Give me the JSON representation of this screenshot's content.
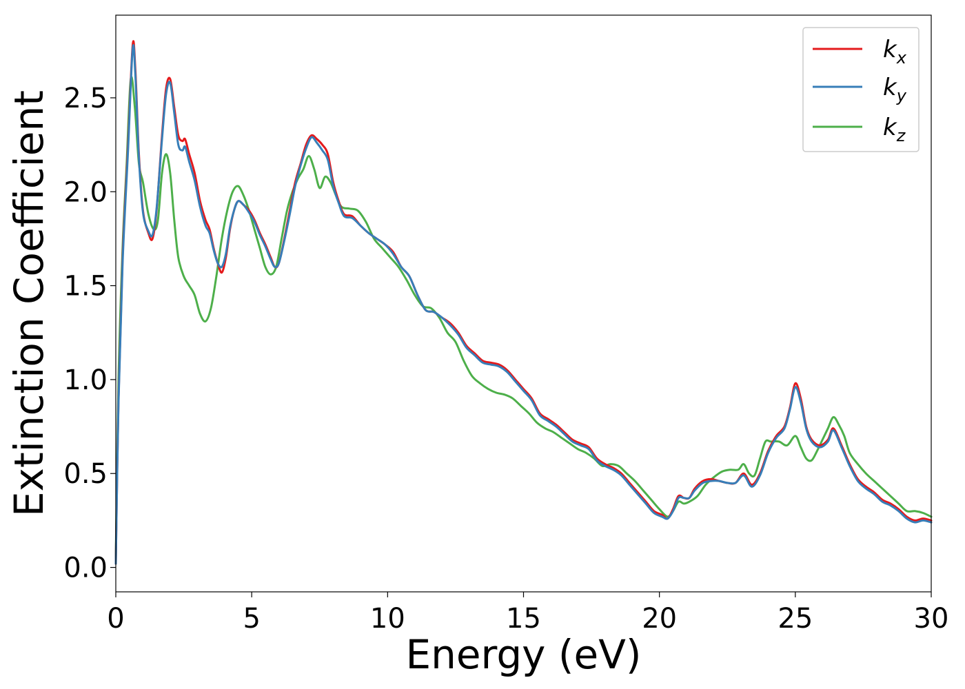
{
  "chart_data": {
    "type": "line",
    "title": "",
    "xlabel": "Energy (eV)",
    "ylabel": "Extinction Coefficient",
    "xlim": [
      0,
      30
    ],
    "ylim": [
      -0.13,
      2.94
    ],
    "xticks": [
      0,
      5,
      10,
      15,
      20,
      25,
      30
    ],
    "xtick_labels": [
      "0",
      "5",
      "10",
      "15",
      "20",
      "25",
      "30"
    ],
    "yticks": [
      0.0,
      0.5,
      1.0,
      1.5,
      2.0,
      2.5
    ],
    "ytick_labels": [
      "0.0",
      "0.5",
      "1.0",
      "1.5",
      "2.0",
      "2.5"
    ],
    "grid": false,
    "legend": {
      "placement": "top-right"
    },
    "series": [
      {
        "name": "k",
        "subscript": "x",
        "color": "#e41a1c",
        "x": [
          0,
          0.1,
          0.25,
          0.45,
          0.62,
          0.72,
          0.85,
          1.0,
          1.2,
          1.35,
          1.5,
          1.7,
          1.85,
          2.0,
          2.15,
          2.3,
          2.45,
          2.55,
          2.7,
          2.9,
          3.1,
          3.3,
          3.45,
          3.6,
          3.75,
          3.9,
          4.05,
          4.2,
          4.35,
          4.5,
          4.7,
          4.9,
          5.1,
          5.3,
          5.5,
          5.7,
          5.85,
          6.0,
          6.2,
          6.4,
          6.6,
          6.8,
          7.0,
          7.2,
          7.4,
          7.6,
          7.8,
          8.0,
          8.2,
          8.4,
          8.7,
          9.0,
          9.3,
          9.6,
          9.9,
          10.2,
          10.5,
          10.8,
          11.1,
          11.4,
          11.7,
          12.0,
          12.3,
          12.6,
          12.9,
          13.2,
          13.5,
          13.8,
          14.1,
          14.4,
          14.7,
          15.0,
          15.3,
          15.6,
          15.9,
          16.2,
          16.5,
          16.8,
          17.1,
          17.4,
          17.7,
          18.0,
          18.3,
          18.6,
          18.9,
          19.2,
          19.5,
          19.8,
          20.1,
          20.3,
          20.5,
          20.7,
          20.9,
          21.1,
          21.3,
          21.6,
          21.9,
          22.2,
          22.5,
          22.8,
          23.1,
          23.4,
          23.7,
          24.0,
          24.3,
          24.6,
          24.8,
          25.0,
          25.2,
          25.4,
          25.6,
          25.9,
          26.2,
          26.4,
          26.7,
          27.0,
          27.3,
          27.6,
          27.9,
          28.2,
          28.5,
          28.8,
          29.1,
          29.4,
          29.7,
          30.0
        ],
        "y": [
          0.02,
          0.9,
          1.65,
          2.25,
          2.78,
          2.65,
          2.2,
          1.9,
          1.78,
          1.75,
          1.9,
          2.3,
          2.55,
          2.6,
          2.45,
          2.3,
          2.27,
          2.28,
          2.2,
          2.1,
          1.95,
          1.85,
          1.8,
          1.7,
          1.62,
          1.57,
          1.65,
          1.8,
          1.9,
          1.95,
          1.93,
          1.9,
          1.85,
          1.78,
          1.72,
          1.65,
          1.6,
          1.62,
          1.75,
          1.9,
          2.05,
          2.15,
          2.25,
          2.3,
          2.28,
          2.25,
          2.2,
          2.05,
          1.95,
          1.88,
          1.87,
          1.82,
          1.78,
          1.75,
          1.72,
          1.68,
          1.6,
          1.55,
          1.45,
          1.37,
          1.36,
          1.33,
          1.3,
          1.25,
          1.18,
          1.14,
          1.1,
          1.09,
          1.08,
          1.05,
          1.0,
          0.95,
          0.9,
          0.82,
          0.79,
          0.76,
          0.72,
          0.68,
          0.66,
          0.64,
          0.58,
          0.55,
          0.53,
          0.5,
          0.45,
          0.4,
          0.35,
          0.3,
          0.28,
          0.26,
          0.31,
          0.38,
          0.37,
          0.37,
          0.42,
          0.46,
          0.47,
          0.46,
          0.45,
          0.45,
          0.5,
          0.44,
          0.5,
          0.62,
          0.7,
          0.75,
          0.85,
          0.98,
          0.9,
          0.75,
          0.68,
          0.65,
          0.68,
          0.74,
          0.65,
          0.55,
          0.47,
          0.43,
          0.4,
          0.36,
          0.34,
          0.31,
          0.27,
          0.25,
          0.26,
          0.25
        ]
      },
      {
        "name": "k",
        "subscript": "y",
        "color": "#377eb8",
        "x": [
          0,
          0.1,
          0.25,
          0.45,
          0.62,
          0.72,
          0.85,
          1.0,
          1.2,
          1.35,
          1.5,
          1.7,
          1.85,
          2.0,
          2.15,
          2.3,
          2.45,
          2.55,
          2.7,
          2.9,
          3.1,
          3.3,
          3.45,
          3.6,
          3.75,
          3.9,
          4.05,
          4.2,
          4.35,
          4.5,
          4.7,
          4.9,
          5.1,
          5.3,
          5.5,
          5.7,
          5.85,
          6.0,
          6.2,
          6.4,
          6.6,
          6.8,
          7.0,
          7.2,
          7.4,
          7.6,
          7.8,
          8.0,
          8.2,
          8.4,
          8.7,
          9.0,
          9.3,
          9.6,
          9.9,
          10.2,
          10.5,
          10.8,
          11.1,
          11.4,
          11.7,
          12.0,
          12.3,
          12.6,
          12.9,
          13.2,
          13.5,
          13.8,
          14.1,
          14.4,
          14.7,
          15.0,
          15.3,
          15.6,
          15.9,
          16.2,
          16.5,
          16.8,
          17.1,
          17.4,
          17.7,
          18.0,
          18.3,
          18.6,
          18.9,
          19.2,
          19.5,
          19.8,
          20.1,
          20.3,
          20.5,
          20.7,
          20.9,
          21.1,
          21.3,
          21.6,
          21.9,
          22.2,
          22.5,
          22.8,
          23.1,
          23.4,
          23.7,
          24.0,
          24.3,
          24.6,
          24.8,
          25.0,
          25.2,
          25.4,
          25.6,
          25.9,
          26.2,
          26.4,
          26.7,
          27.0,
          27.3,
          27.6,
          27.9,
          28.2,
          28.5,
          28.8,
          29.1,
          29.4,
          29.7,
          30.0
        ],
        "y": [
          0.02,
          0.88,
          1.62,
          2.22,
          2.76,
          2.62,
          2.18,
          1.89,
          1.79,
          1.77,
          1.91,
          2.28,
          2.52,
          2.58,
          2.42,
          2.25,
          2.22,
          2.24,
          2.16,
          2.06,
          1.92,
          1.82,
          1.78,
          1.69,
          1.62,
          1.6,
          1.67,
          1.81,
          1.9,
          1.95,
          1.93,
          1.89,
          1.84,
          1.77,
          1.71,
          1.64,
          1.6,
          1.62,
          1.74,
          1.88,
          2.03,
          2.14,
          2.23,
          2.29,
          2.26,
          2.22,
          2.17,
          2.03,
          1.94,
          1.87,
          1.86,
          1.82,
          1.78,
          1.75,
          1.72,
          1.67,
          1.6,
          1.55,
          1.45,
          1.37,
          1.36,
          1.33,
          1.29,
          1.24,
          1.17,
          1.13,
          1.09,
          1.08,
          1.07,
          1.04,
          0.99,
          0.94,
          0.89,
          0.81,
          0.78,
          0.75,
          0.71,
          0.67,
          0.65,
          0.63,
          0.57,
          0.54,
          0.52,
          0.49,
          0.44,
          0.39,
          0.34,
          0.29,
          0.27,
          0.26,
          0.3,
          0.37,
          0.37,
          0.37,
          0.41,
          0.45,
          0.46,
          0.46,
          0.45,
          0.45,
          0.49,
          0.43,
          0.49,
          0.61,
          0.69,
          0.74,
          0.84,
          0.96,
          0.88,
          0.74,
          0.67,
          0.64,
          0.67,
          0.73,
          0.64,
          0.54,
          0.46,
          0.42,
          0.39,
          0.35,
          0.33,
          0.3,
          0.26,
          0.24,
          0.25,
          0.24
        ]
      },
      {
        "name": "k",
        "subscript": "z",
        "color": "#4daf4a",
        "x": [
          0,
          0.1,
          0.25,
          0.4,
          0.55,
          0.7,
          0.85,
          1.0,
          1.2,
          1.4,
          1.55,
          1.7,
          1.85,
          2.0,
          2.15,
          2.3,
          2.5,
          2.7,
          2.9,
          3.1,
          3.3,
          3.5,
          3.7,
          3.9,
          4.1,
          4.3,
          4.5,
          4.7,
          4.9,
          5.1,
          5.3,
          5.5,
          5.7,
          5.9,
          6.1,
          6.3,
          6.5,
          6.7,
          6.9,
          7.1,
          7.3,
          7.5,
          7.7,
          7.9,
          8.1,
          8.3,
          8.6,
          8.9,
          9.2,
          9.5,
          9.8,
          10.1,
          10.4,
          10.7,
          11.0,
          11.3,
          11.6,
          11.9,
          12.2,
          12.5,
          12.8,
          13.1,
          13.4,
          13.7,
          14.0,
          14.3,
          14.6,
          14.9,
          15.2,
          15.5,
          15.8,
          16.1,
          16.4,
          16.7,
          17.0,
          17.3,
          17.6,
          17.9,
          18.2,
          18.5,
          18.8,
          19.1,
          19.4,
          19.7,
          20.0,
          20.3,
          20.5,
          20.7,
          20.9,
          21.1,
          21.4,
          21.7,
          22.0,
          22.3,
          22.6,
          22.9,
          23.1,
          23.3,
          23.5,
          23.7,
          23.9,
          24.1,
          24.4,
          24.7,
          25.0,
          25.2,
          25.4,
          25.6,
          25.8,
          26.0,
          26.2,
          26.4,
          26.6,
          26.8,
          27.0,
          27.3,
          27.6,
          27.9,
          28.2,
          28.5,
          28.8,
          29.1,
          29.4,
          29.7,
          30.0
        ],
        "y": [
          0.05,
          1.0,
          1.7,
          2.15,
          2.6,
          2.45,
          2.15,
          2.05,
          1.88,
          1.8,
          1.85,
          2.1,
          2.2,
          2.1,
          1.85,
          1.65,
          1.55,
          1.5,
          1.45,
          1.35,
          1.31,
          1.38,
          1.55,
          1.75,
          1.9,
          2.0,
          2.03,
          1.98,
          1.9,
          1.8,
          1.7,
          1.6,
          1.56,
          1.6,
          1.75,
          1.9,
          2.0,
          2.07,
          2.12,
          2.19,
          2.12,
          2.02,
          2.08,
          2.05,
          1.98,
          1.92,
          1.91,
          1.9,
          1.84,
          1.75,
          1.7,
          1.65,
          1.6,
          1.53,
          1.45,
          1.39,
          1.38,
          1.33,
          1.25,
          1.2,
          1.1,
          1.02,
          0.98,
          0.95,
          0.93,
          0.92,
          0.9,
          0.86,
          0.82,
          0.77,
          0.74,
          0.72,
          0.69,
          0.66,
          0.63,
          0.61,
          0.58,
          0.54,
          0.55,
          0.54,
          0.5,
          0.46,
          0.41,
          0.36,
          0.31,
          0.27,
          0.3,
          0.35,
          0.34,
          0.35,
          0.38,
          0.44,
          0.48,
          0.51,
          0.52,
          0.52,
          0.55,
          0.5,
          0.49,
          0.58,
          0.67,
          0.67,
          0.67,
          0.65,
          0.7,
          0.64,
          0.58,
          0.57,
          0.62,
          0.68,
          0.74,
          0.8,
          0.76,
          0.7,
          0.61,
          0.55,
          0.5,
          0.46,
          0.42,
          0.38,
          0.34,
          0.3,
          0.3,
          0.29,
          0.27
        ]
      }
    ]
  }
}
